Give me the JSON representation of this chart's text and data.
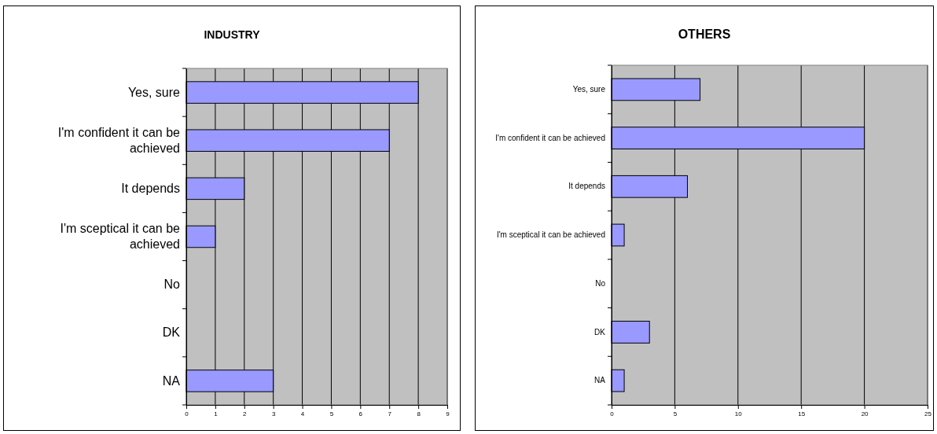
{
  "chart_data": [
    {
      "type": "bar",
      "title": "INDUSTRY",
      "orientation": "horizontal",
      "categories": [
        "Yes, sure",
        "I'm confident it can be achieved",
        "It depends",
        "I'm sceptical it can be achieved",
        "No",
        "DK",
        "NA"
      ],
      "values": [
        8,
        7,
        2,
        1,
        0,
        0,
        3
      ],
      "color": "#9999ff",
      "xlim": [
        0,
        9
      ],
      "xticks": [
        0,
        1,
        2,
        3,
        4,
        5,
        6,
        7,
        8,
        9
      ],
      "grid": "x"
    },
    {
      "type": "bar",
      "title": "OTHERS",
      "orientation": "horizontal",
      "categories": [
        "Yes, sure",
        "I'm confident it can be achieved",
        "It depends",
        "I'm sceptical it can be achieved",
        "No",
        "DK",
        "NA"
      ],
      "values": [
        7,
        20,
        6,
        1,
        0,
        3,
        1
      ],
      "color": "#9999ff",
      "xlim": [
        0,
        25
      ],
      "xticks": [
        0,
        5,
        10,
        15,
        20,
        25
      ],
      "grid": "x"
    }
  ]
}
